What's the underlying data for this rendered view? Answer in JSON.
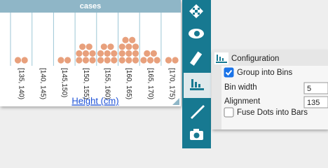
{
  "graph": {
    "title": "cases",
    "bins": [
      {
        "label": "[135, 140)",
        "count": 2
      },
      {
        "label": "[140, 145)",
        "count": 0
      },
      {
        "label": "[145,150)",
        "count": 2
      },
      {
        "label": "[150, 155)",
        "count": 8
      },
      {
        "label": "[155, 160)",
        "count": 8
      },
      {
        "label": "[160, 165)",
        "count": 11
      },
      {
        "label": "[165, 170)",
        "count": 5
      },
      {
        "label": "[170, 175)",
        "count": 2
      }
    ],
    "x_axis_label": "Height (cm)",
    "dot_color": "#e8a07c"
  },
  "config": {
    "title": "Configuration",
    "group_into_bins": {
      "label": "Group into Bins",
      "checked": true
    },
    "bin_width": {
      "label": "Bin width",
      "value": 5
    },
    "alignment": {
      "label": "Alignment",
      "value": 135
    },
    "fuse_dots": {
      "label": "Fuse Dots into Bars",
      "checked": false
    }
  }
}
